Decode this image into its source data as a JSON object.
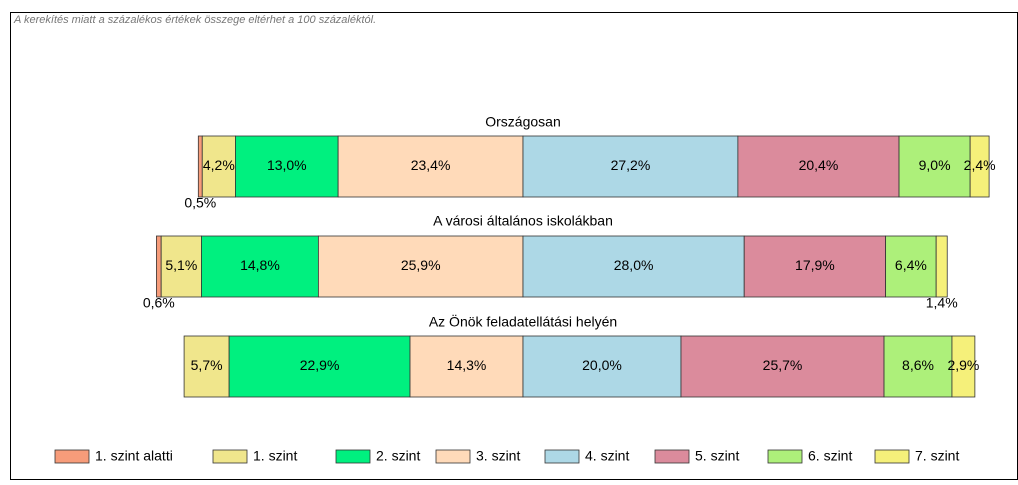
{
  "chart_data": {
    "type": "bar",
    "orientation": "horizontal",
    "stacked": true,
    "diverging": true,
    "note": "A kerekítés miatt a  százalékos értékek összege eltérhet a 100 százaléktól.",
    "categories": [
      "Országosan",
      "A városi általános iskolákban",
      "Az Önök feladatellátási helyén"
    ],
    "series": [
      {
        "name": "1. szint alatti",
        "color": "#f79c7a",
        "values": [
          0.5,
          0.6,
          0
        ],
        "value_labels": [
          "0,5%",
          "0,6%",
          null
        ]
      },
      {
        "name": "1. szint",
        "color": "#f0e68c",
        "values": [
          4.2,
          5.1,
          5.7
        ],
        "value_labels": [
          "4,2%",
          "5,1%",
          "5,7%"
        ]
      },
      {
        "name": "2. szint",
        "color": "#00f07f",
        "values": [
          13.0,
          14.8,
          22.9
        ],
        "value_labels": [
          "13,0%",
          "14,8%",
          "22,9%"
        ]
      },
      {
        "name": "3. szint",
        "color": "#ffdab9",
        "values": [
          23.4,
          25.9,
          14.3
        ],
        "value_labels": [
          "23,4%",
          "25,9%",
          "14,3%"
        ]
      },
      {
        "name": "4. szint",
        "color": "#add8e6",
        "values": [
          27.2,
          28.0,
          20.0
        ],
        "value_labels": [
          "27,2%",
          "28,0%",
          "20,0%"
        ]
      },
      {
        "name": "5. szint",
        "color": "#db8b9c",
        "values": [
          20.4,
          17.9,
          25.7
        ],
        "value_labels": [
          "20,4%",
          "17,9%",
          "25,7%"
        ]
      },
      {
        "name": "6. szint",
        "color": "#adf07a",
        "values": [
          9.0,
          6.4,
          8.6
        ],
        "value_labels": [
          "9,0%",
          "6,4%",
          "8,6%"
        ]
      },
      {
        "name": "7. szint",
        "color": "#f5f07a",
        "values": [
          2.4,
          1.4,
          2.9
        ],
        "value_labels": [
          "2,4%",
          "1,4%",
          "2,9%"
        ]
      }
    ]
  }
}
